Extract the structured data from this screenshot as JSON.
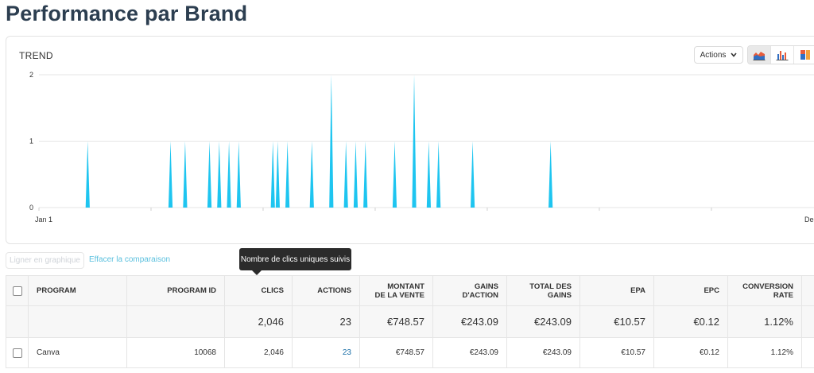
{
  "page": {
    "title": "Performance par Brand"
  },
  "trend_card": {
    "title": "TREND",
    "actions_label": "Actions",
    "view_buttons": [
      {
        "name": "area-chart-icon",
        "active": true
      },
      {
        "name": "bar-chart-icon",
        "active": false
      },
      {
        "name": "stacked-chart-icon",
        "active": false
      }
    ]
  },
  "chart_data": {
    "type": "area",
    "title": "TREND",
    "ylim": [
      0,
      2
    ],
    "y_ticks": [
      "0",
      "1",
      "2"
    ],
    "x_tick_labels": [
      "Jan 1",
      "Dec"
    ],
    "grid": true,
    "color": "#1ec5f0",
    "spikes": [
      {
        "day": 10,
        "value": 1
      },
      {
        "day": 27,
        "value": 1
      },
      {
        "day": 30,
        "value": 1
      },
      {
        "day": 35,
        "value": 1
      },
      {
        "day": 37,
        "value": 1
      },
      {
        "day": 39,
        "value": 1
      },
      {
        "day": 41,
        "value": 1
      },
      {
        "day": 48,
        "value": 1
      },
      {
        "day": 49,
        "value": 1
      },
      {
        "day": 51,
        "value": 1
      },
      {
        "day": 56,
        "value": 1
      },
      {
        "day": 60,
        "value": 2
      },
      {
        "day": 63,
        "value": 1
      },
      {
        "day": 65,
        "value": 1
      },
      {
        "day": 67,
        "value": 1
      },
      {
        "day": 73,
        "value": 1
      },
      {
        "day": 77,
        "value": 2
      },
      {
        "day": 80,
        "value": 1
      },
      {
        "day": 82,
        "value": 1
      },
      {
        "day": 89,
        "value": 1
      },
      {
        "day": 105,
        "value": 1
      }
    ]
  },
  "controls": {
    "graph_button_label": "Ligner en graphique",
    "clear_comparison_label": "Effacer la comparaison",
    "tooltip_text": "Nombre de clics uniques suivis"
  },
  "table": {
    "headers": {
      "program": "PROGRAM",
      "program_id": "PROGRAM ID",
      "clics": "CLICS",
      "actions": "ACTIONS",
      "sale_amount_1": "MONTANT",
      "sale_amount_2": "DE LA VENTE",
      "action_gains_1": "GAINS",
      "action_gains_2": "D'ACTION",
      "total_gains_1": "TOTAL DES",
      "total_gains_2": "GAINS",
      "epa": "EPA",
      "epc": "EPC",
      "conversion_1": "CONVERSION",
      "conversion_2": "RATE"
    },
    "totals": {
      "clics": "2,046",
      "actions": "23",
      "sale_amount": "€748.57",
      "action_gains": "€243.09",
      "total_gains": "€243.09",
      "epa": "€10.57",
      "epc": "€0.12",
      "conversion": "1.12%"
    },
    "rows": [
      {
        "program": "Canva",
        "program_id": "10068",
        "clics": "2,046",
        "actions": "23",
        "sale_amount": "€748.57",
        "action_gains": "€243.09",
        "total_gains": "€243.09",
        "epa": "€10.57",
        "epc": "€0.12",
        "conversion": "1.12%"
      }
    ]
  }
}
